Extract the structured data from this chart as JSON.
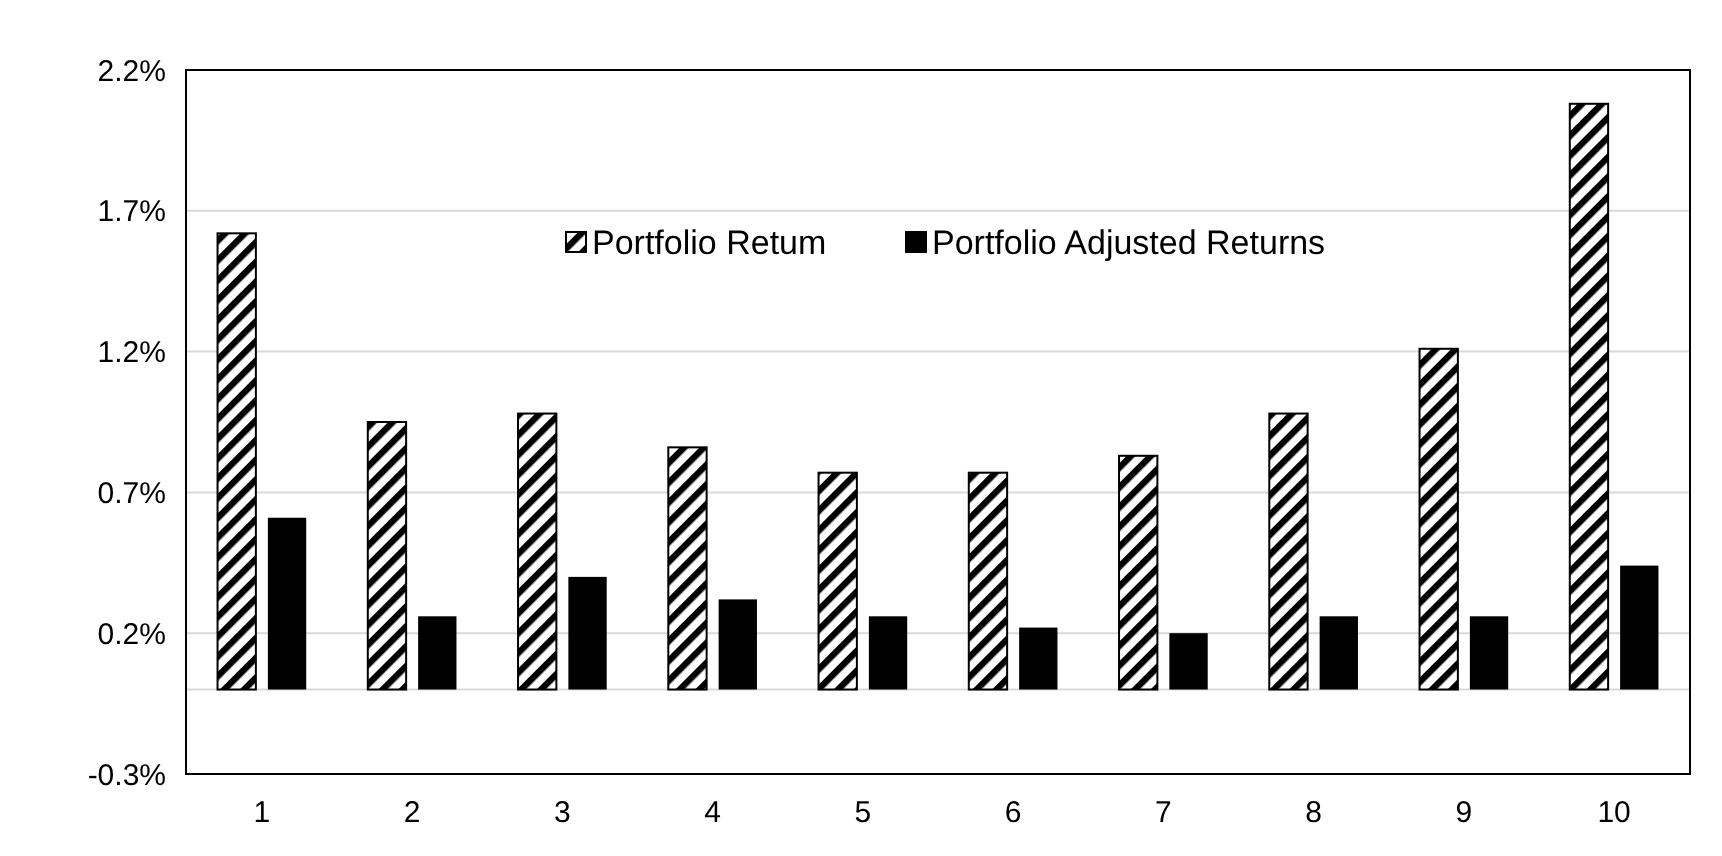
{
  "chart_data": {
    "type": "bar",
    "categories": [
      "1",
      "2",
      "3",
      "4",
      "5",
      "6",
      "7",
      "8",
      "9",
      "10"
    ],
    "series": [
      {
        "name": "Portfolio Retum",
        "color": "#000000",
        "values": [
          1.62,
          0.95,
          0.98,
          0.86,
          0.77,
          0.77,
          0.83,
          0.98,
          1.21,
          2.08
        ]
      },
      {
        "name": "Portfolio Adjusted Returns",
        "color": "#000000",
        "values": [
          0.61,
          0.26,
          0.4,
          0.32,
          0.26,
          0.22,
          0.2,
          0.26,
          0.26,
          0.44
        ]
      }
    ],
    "ylim": [
      -0.3,
      2.2
    ],
    "yticks": [
      {
        "value": -0.3,
        "label": "-0.3%"
      },
      {
        "value": 0.2,
        "label": "0.2%"
      },
      {
        "value": 0.7,
        "label": "0.7%"
      },
      {
        "value": 1.2,
        "label": "1.2%"
      },
      {
        "value": 1.7,
        "label": "1.7%"
      },
      {
        "value": 2.2,
        "label": "2.2%"
      }
    ],
    "grid": "y",
    "legend": "top"
  }
}
